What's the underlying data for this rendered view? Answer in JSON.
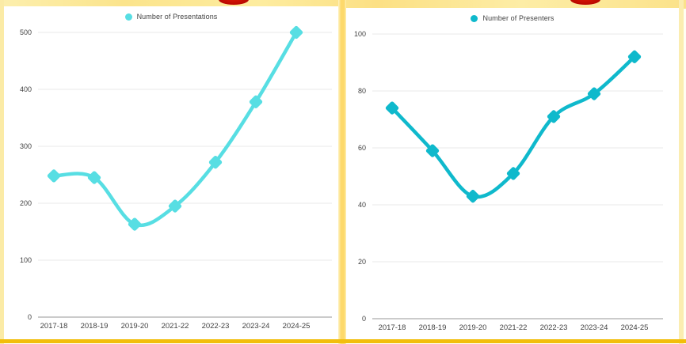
{
  "chart_data": [
    {
      "type": "line",
      "legend": "Number of Presentations",
      "categories": [
        "2017-18",
        "2018-19",
        "2019-20",
        "2021-22",
        "2022-23",
        "2023-24",
        "2024-25"
      ],
      "values": [
        248,
        245,
        163,
        195,
        272,
        378,
        500
      ],
      "ylim": [
        0,
        500
      ],
      "yticks": [
        0,
        100,
        200,
        300,
        400,
        500
      ],
      "line_color": "#57DEE3",
      "marker": "diamond",
      "grid": true,
      "legend_position": "top-center",
      "xlabel": "",
      "ylabel": ""
    },
    {
      "type": "line",
      "legend": "Number of Presenters",
      "categories": [
        "2017-18",
        "2018-19",
        "2019-20",
        "2021-22",
        "2022-23",
        "2023-24",
        "2024-25"
      ],
      "values": [
        74,
        59,
        43,
        51,
        71,
        79,
        92
      ],
      "ylim": [
        0,
        100
      ],
      "yticks": [
        0,
        20,
        40,
        60,
        80,
        100
      ],
      "line_color": "#0FB9CC",
      "marker": "diamond",
      "grid": true,
      "legend_position": "top-center",
      "xlabel": "",
      "ylabel": ""
    }
  ],
  "decor": {
    "panel_background": "#FFFFFF",
    "frame_pale_yellow": "#FBEBA6",
    "gutter_yellow": "#FDD96B",
    "gold_bar": "#F2BE0B",
    "red_accent": "#C01104",
    "gridline_color": "#E8E8E8",
    "axis_line_color": "#CBCBCB",
    "tick_text_color": "#424242"
  }
}
